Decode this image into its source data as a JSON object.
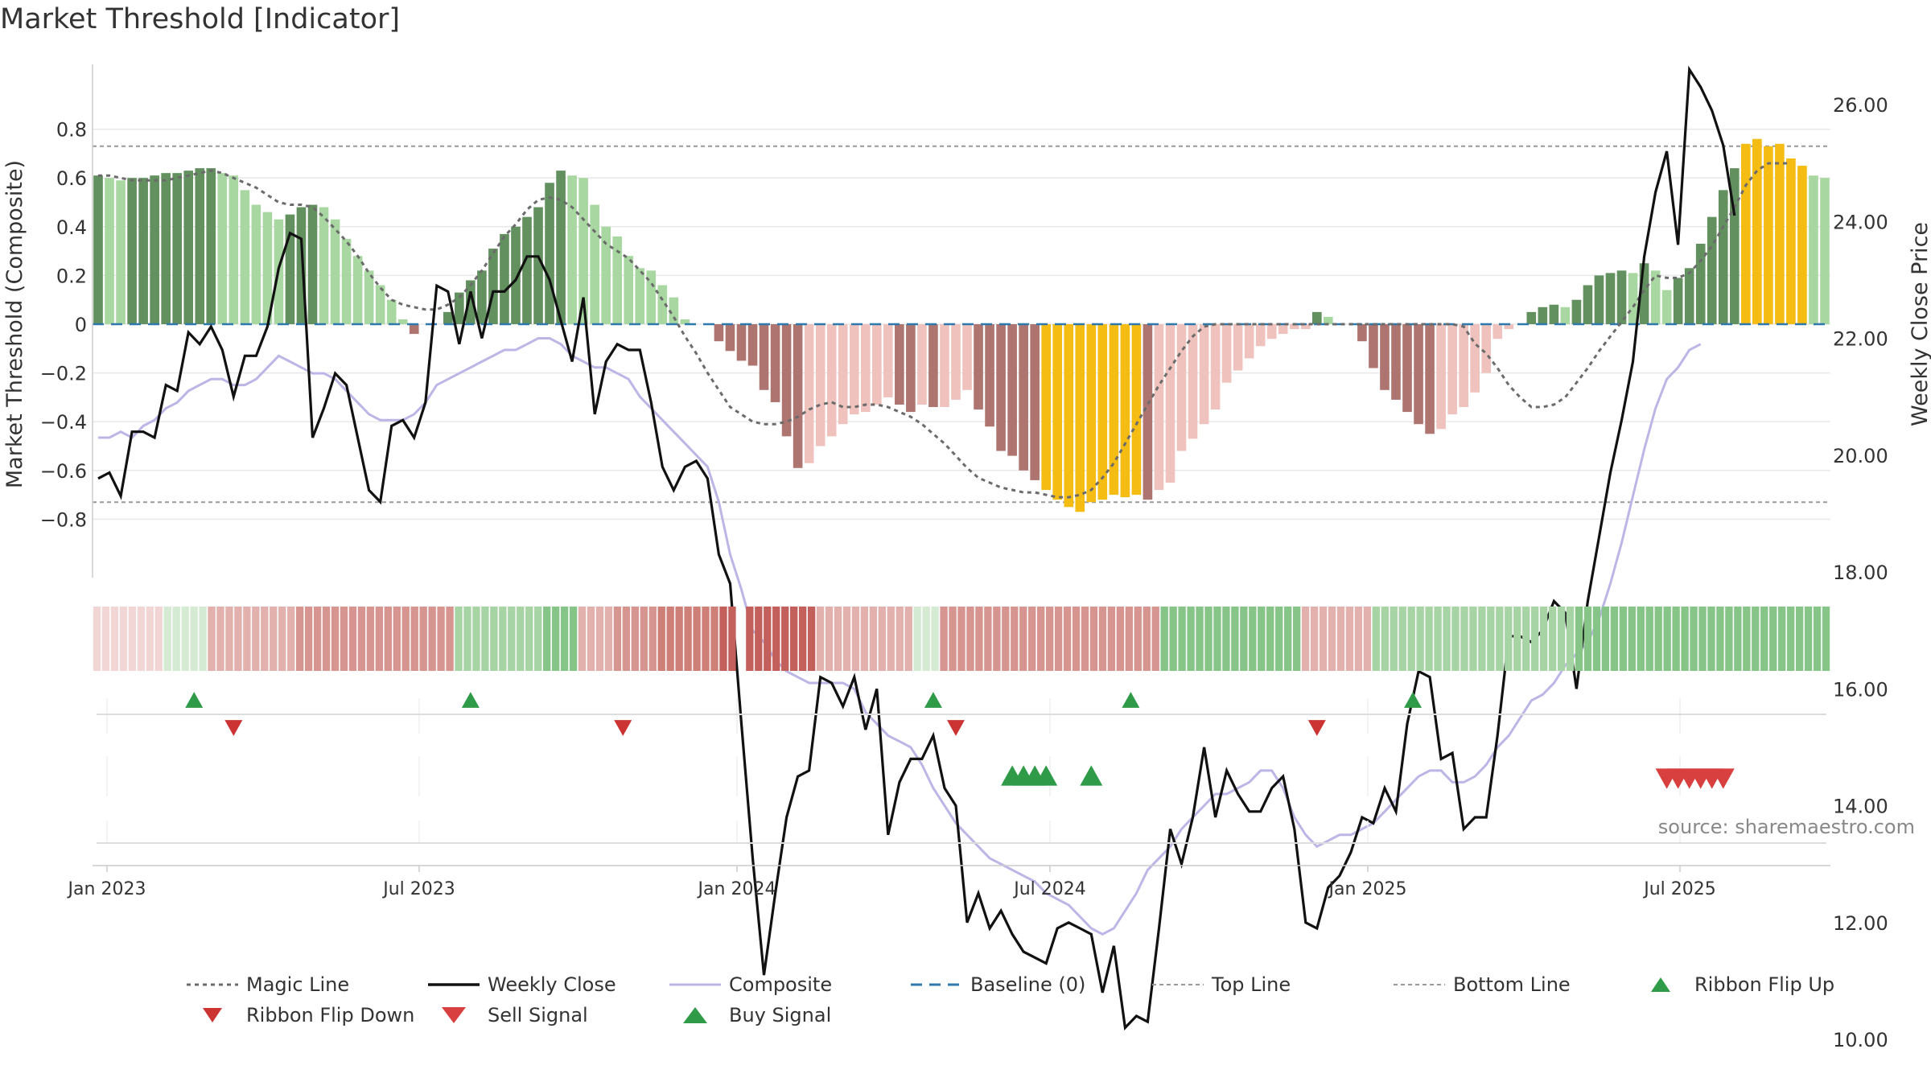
{
  "title": "Market Threshold [Indicator]",
  "source": "source: sharemaestro.com",
  "colors": {
    "buy_dark": "#62905f",
    "buy_light": "#a9d7a2",
    "sell_dark": "#ae7570",
    "sell_light": "#efc2bd",
    "extreme": "#f5bd13",
    "weekly": "#111111",
    "composite": "#bbb6e6",
    "magic": "#6b6b6b",
    "baseline": "#2f78ab",
    "threshold": "#999999",
    "signal_buy": "#2f9a48",
    "signal_sell": "#d8403f",
    "flip_down": "#cc3333"
  },
  "chart_data": {
    "type": "bar+line",
    "xaxis": {
      "ticks": [
        "Jan 2023",
        "Jul 2023",
        "Jan 2024",
        "Jul 2024",
        "Jan 2025",
        "Jul 2025"
      ]
    },
    "yaxis_left": {
      "label": "Market Threshold (Composite)",
      "range": [
        -0.85,
        0.82
      ],
      "ticks": [
        "0.8",
        "0.6",
        "0.4",
        "0.2",
        "0",
        "−0.2",
        "−0.4",
        "−0.6",
        "−0.8"
      ]
    },
    "yaxis_right": {
      "label": "Weekly Close Price",
      "range": [
        9.7,
        27.0
      ],
      "ticks": [
        "26.00",
        "24.00",
        "22.00",
        "20.00",
        "18.00",
        "16.00",
        "14.00",
        "12.00",
        "10.00"
      ]
    },
    "top_line": 0.73,
    "bottom_line": -0.73,
    "weekly_close": [
      19.6,
      19.7,
      19.3,
      20.4,
      20.4,
      20.3,
      21.2,
      21.1,
      22.1,
      21.9,
      22.2,
      21.8,
      21.0,
      21.7,
      21.7,
      22.2,
      23.2,
      23.8,
      23.7,
      20.3,
      20.8,
      21.4,
      21.2,
      20.3,
      19.4,
      19.2,
      20.5,
      20.6,
      20.3,
      20.9,
      22.9,
      22.8,
      21.9,
      22.8,
      22.0,
      22.8,
      22.8,
      23.0,
      23.4,
      23.4,
      23.0,
      22.3,
      21.6,
      22.7,
      20.7,
      21.6,
      21.9,
      21.8,
      21.8,
      20.9,
      19.8,
      19.4,
      19.8,
      19.9,
      19.6,
      18.3,
      17.8,
      15.4,
      13.1,
      11.1,
      12.5,
      13.8,
      14.5,
      14.6,
      16.2,
      16.1,
      15.7,
      16.2,
      15.3,
      16.0,
      13.5,
      14.4,
      14.8,
      14.8,
      15.2,
      14.3,
      14.0,
      12.0,
      12.5,
      11.9,
      12.2,
      11.8,
      11.5,
      11.4,
      11.3,
      11.9,
      12.0,
      11.9,
      11.8,
      10.8,
      11.6,
      10.2,
      10.4,
      10.3,
      11.9,
      13.6,
      13.0,
      13.8,
      15.0,
      13.8,
      14.6,
      14.2,
      13.9,
      13.9,
      14.3,
      14.5,
      13.6,
      12.0,
      11.9,
      12.6,
      12.8,
      13.2,
      13.8,
      13.7,
      14.3,
      13.9,
      15.4,
      16.3,
      16.2,
      14.8,
      14.9,
      13.6,
      13.8,
      13.8,
      15.2,
      16.9,
      16.9,
      16.8,
      17.0,
      17.5,
      17.3,
      16.0,
      17.5,
      18.6,
      19.7,
      20.6,
      21.6,
      23.4,
      24.5,
      25.2,
      23.6,
      26.6,
      26.3,
      25.9,
      25.3,
      24.1
    ],
    "composite": [
      20.3,
      20.3,
      20.4,
      20.3,
      20.5,
      20.6,
      20.8,
      20.9,
      21.1,
      21.2,
      21.3,
      21.3,
      21.2,
      21.2,
      21.3,
      21.5,
      21.7,
      21.6,
      21.5,
      21.4,
      21.4,
      21.3,
      21.1,
      20.9,
      20.7,
      20.6,
      20.6,
      20.6,
      20.7,
      20.9,
      21.2,
      21.3,
      21.4,
      21.5,
      21.6,
      21.7,
      21.8,
      21.8,
      21.9,
      22.0,
      22.0,
      21.9,
      21.7,
      21.6,
      21.5,
      21.5,
      21.4,
      21.3,
      21.0,
      20.8,
      20.6,
      20.4,
      20.2,
      20.0,
      19.8,
      19.2,
      18.3,
      17.7,
      17.0,
      16.8,
      16.5,
      16.3,
      16.2,
      16.1,
      16.1,
      16.1,
      16.1,
      16.0,
      15.6,
      15.4,
      15.2,
      15.1,
      15.0,
      14.7,
      14.3,
      14.0,
      13.7,
      13.5,
      13.3,
      13.1,
      13.0,
      12.9,
      12.8,
      12.7,
      12.5,
      12.4,
      12.3,
      12.1,
      11.9,
      11.8,
      11.9,
      12.2,
      12.5,
      12.9,
      13.1,
      13.3,
      13.6,
      13.8,
      14.0,
      14.2,
      14.2,
      14.3,
      14.4,
      14.6,
      14.6,
      14.3,
      13.8,
      13.5,
      13.3,
      13.4,
      13.5,
      13.5,
      13.6,
      13.7,
      13.9,
      14.1,
      14.3,
      14.5,
      14.6,
      14.6,
      14.4,
      14.4,
      14.5,
      14.7,
      15.0,
      15.2,
      15.5,
      15.8,
      15.9,
      16.1,
      16.4,
      16.6,
      16.8,
      17.2,
      17.8,
      18.5,
      19.3,
      20.1,
      20.8,
      21.3,
      21.5,
      21.8,
      21.9
    ],
    "magic_line": [
      0.61,
      0.61,
      0.6,
      0.59,
      0.59,
      0.59,
      0.59,
      0.6,
      0.61,
      0.62,
      0.63,
      0.62,
      0.6,
      0.58,
      0.56,
      0.53,
      0.5,
      0.49,
      0.49,
      0.48,
      0.44,
      0.39,
      0.34,
      0.28,
      0.21,
      0.15,
      0.1,
      0.08,
      0.07,
      0.06,
      0.06,
      0.08,
      0.11,
      0.16,
      0.22,
      0.29,
      0.36,
      0.41,
      0.47,
      0.51,
      0.52,
      0.51,
      0.48,
      0.43,
      0.38,
      0.33,
      0.3,
      0.27,
      0.22,
      0.17,
      0.1,
      0.03,
      -0.05,
      -0.12,
      -0.2,
      -0.27,
      -0.34,
      -0.37,
      -0.4,
      -0.41,
      -0.41,
      -0.4,
      -0.38,
      -0.35,
      -0.33,
      -0.32,
      -0.34,
      -0.34,
      -0.33,
      -0.33,
      -0.34,
      -0.36,
      -0.38,
      -0.41,
      -0.45,
      -0.49,
      -0.54,
      -0.59,
      -0.63,
      -0.65,
      -0.67,
      -0.68,
      -0.69,
      -0.69,
      -0.7,
      -0.71,
      -0.71,
      -0.7,
      -0.68,
      -0.63,
      -0.57,
      -0.49,
      -0.41,
      -0.33,
      -0.25,
      -0.18,
      -0.11,
      -0.05,
      -0.01,
      0.0,
      0.0,
      0.0,
      0.0,
      0.0,
      0.0,
      0.0,
      0.0,
      0.0,
      0.0,
      0.0,
      0.0,
      0.0,
      0.0,
      0.0,
      0.0,
      0.0,
      0.0,
      0.0,
      0.0,
      0.0,
      0.0,
      -0.01,
      -0.08,
      -0.12,
      -0.18,
      -0.25,
      -0.3,
      -0.34,
      -0.34,
      -0.33,
      -0.3,
      -0.24,
      -0.18,
      -0.11,
      -0.05,
      0.01,
      0.07,
      0.14,
      0.2,
      0.19,
      0.19,
      0.21,
      0.26,
      0.32,
      0.4,
      0.48,
      0.57,
      0.63,
      0.66,
      0.66,
      0.66
    ],
    "bars": [
      0.61,
      0.6,
      0.59,
      0.6,
      0.6,
      0.61,
      0.62,
      0.62,
      0.63,
      0.64,
      0.64,
      0.62,
      0.61,
      0.55,
      0.49,
      0.46,
      0.43,
      0.45,
      0.48,
      0.49,
      0.48,
      0.43,
      0.35,
      0.28,
      0.22,
      0.16,
      0.1,
      0.02,
      -0.04,
      0.0,
      0.0,
      0.05,
      0.13,
      0.18,
      0.22,
      0.31,
      0.37,
      0.4,
      0.44,
      0.48,
      0.58,
      0.63,
      0.61,
      0.6,
      0.49,
      0.4,
      0.36,
      0.28,
      0.23,
      0.22,
      0.16,
      0.11,
      0.02,
      0.0,
      0.0,
      -0.07,
      -0.11,
      -0.15,
      -0.17,
      -0.27,
      -0.32,
      -0.46,
      -0.59,
      -0.57,
      -0.5,
      -0.46,
      -0.41,
      -0.37,
      -0.36,
      -0.33,
      -0.3,
      -0.33,
      -0.36,
      -0.33,
      -0.34,
      -0.34,
      -0.31,
      -0.27,
      -0.35,
      -0.42,
      -0.52,
      -0.54,
      -0.6,
      -0.64,
      -0.68,
      -0.72,
      -0.75,
      -0.77,
      -0.73,
      -0.72,
      -0.7,
      -0.71,
      -0.7,
      -0.72,
      -0.68,
      -0.65,
      -0.52,
      -0.47,
      -0.41,
      -0.35,
      -0.24,
      -0.19,
      -0.14,
      -0.09,
      -0.06,
      -0.04,
      -0.02,
      -0.02,
      0.05,
      0.03,
      0.0,
      0.0,
      -0.07,
      -0.18,
      -0.27,
      -0.31,
      -0.36,
      -0.41,
      -0.45,
      -0.43,
      -0.37,
      -0.34,
      -0.28,
      -0.2,
      -0.06,
      -0.02,
      0.0,
      0.05,
      0.07,
      0.08,
      0.07,
      0.1,
      0.16,
      0.2,
      0.21,
      0.22,
      0.21,
      0.25,
      0.22,
      0.14,
      0.19,
      0.23,
      0.33,
      0.44,
      0.55,
      0.64,
      0.74,
      0.76,
      0.73,
      0.74,
      0.68,
      0.65,
      0.61,
      0.6
    ],
    "ribbon": [
      -1,
      -1,
      -1,
      -1,
      -1,
      -1,
      -1,
      -1,
      1,
      1,
      1,
      1,
      1,
      -2,
      -2,
      -2,
      -2,
      -2,
      -2,
      -2,
      -2,
      -2,
      -2,
      -3,
      -3,
      -3,
      -3,
      -3,
      -3,
      -3,
      -3,
      -3,
      -3,
      -3,
      -3,
      -3,
      -3,
      -3,
      -3,
      -3,
      -3,
      2,
      2,
      2,
      2,
      2,
      2,
      2,
      2,
      2,
      2,
      3,
      3,
      3,
      3,
      -2,
      -2,
      -2,
      -2,
      -3,
      -3,
      -3,
      -3,
      -3,
      -4,
      -4,
      -4,
      -4,
      -4,
      -4,
      -4,
      -5,
      -5,
      0,
      -5,
      -5,
      -5,
      -5,
      -5,
      -5,
      -5,
      -5,
      -2,
      -2,
      -2,
      -2,
      -2,
      -2,
      -2,
      -2,
      -2,
      -2,
      -2,
      1,
      1,
      1,
      -3,
      -3,
      -3,
      -3,
      -3,
      -3,
      -3,
      -3,
      -3,
      -3,
      -3,
      -3,
      -3,
      -3,
      -3,
      -3,
      -3,
      -3,
      -3,
      -3,
      -3,
      -3,
      -3,
      -3,
      -3,
      3,
      3,
      3,
      3,
      3,
      3,
      3,
      3,
      3,
      3,
      3,
      3,
      3,
      3,
      3,
      3,
      -2,
      -2,
      -2,
      -2,
      -2,
      -2,
      -2,
      -2,
      2,
      2,
      2,
      2,
      2,
      2,
      2,
      2,
      2,
      2,
      2,
      2,
      2,
      2,
      2,
      2,
      2,
      2,
      2,
      2,
      2,
      2,
      2,
      3,
      3,
      3,
      3,
      3,
      3,
      3,
      3,
      3,
      3,
      3,
      3,
      3,
      3,
      3,
      3,
      3,
      3,
      3,
      3,
      3,
      3,
      3,
      3,
      3,
      3,
      3,
      3,
      3
    ],
    "ribbon_flip_up": [
      8.5,
      33.0,
      74.0,
      91.5,
      116.5
    ],
    "ribbon_flip_down": [
      12.0,
      46.5,
      76.0,
      108.0
    ],
    "buy_signals": [
      81.0,
      82.0,
      83.0,
      84.0,
      88.0
    ],
    "sell_signals": [
      139.0,
      140.0,
      141.0,
      142.0,
      143.0,
      144.0
    ]
  },
  "legend": [
    {
      "key": "magic",
      "label": "Magic Line"
    },
    {
      "key": "weekly",
      "label": "Weekly Close"
    },
    {
      "key": "composite",
      "label": "Composite"
    },
    {
      "key": "baseline",
      "label": "Baseline (0)"
    },
    {
      "key": "top",
      "label": "Top Line"
    },
    {
      "key": "bottom",
      "label": "Bottom Line"
    },
    {
      "key": "flip_up",
      "label": "Ribbon Flip Up"
    },
    {
      "key": "flip_down",
      "label": "Ribbon Flip Down"
    },
    {
      "key": "sell",
      "label": "Sell Signal"
    },
    {
      "key": "buy",
      "label": "Buy Signal"
    }
  ]
}
